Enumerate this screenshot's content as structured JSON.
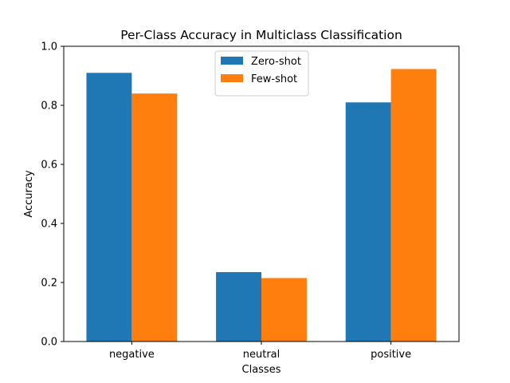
{
  "chart_data": {
    "type": "bar",
    "title": "Per-Class Accuracy in Multiclass Classification",
    "xlabel": "Classes",
    "ylabel": "Accuracy",
    "categories": [
      "negative",
      "neutral",
      "positive"
    ],
    "series": [
      {
        "name": "Zero-shot",
        "color": "#1f77b4",
        "values": [
          0.91,
          0.235,
          0.81
        ]
      },
      {
        "name": "Few-shot",
        "color": "#ff7f0e",
        "values": [
          0.84,
          0.215,
          0.923
        ]
      }
    ],
    "ylim": [
      0,
      1.0
    ],
    "yticks": [
      "0.0",
      "0.2",
      "0.4",
      "0.6",
      "0.8",
      "1.0"
    ],
    "grid": false,
    "legend_position": "top-center"
  }
}
